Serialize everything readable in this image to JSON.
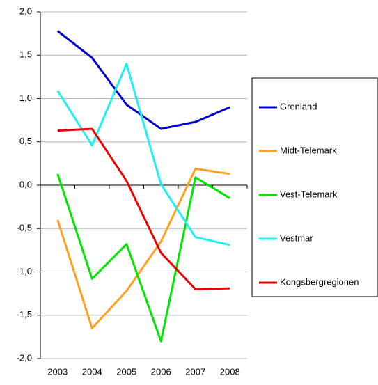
{
  "chart_data": {
    "type": "line",
    "categories": [
      "2003",
      "2004",
      "2005",
      "2006",
      "2007",
      "2008"
    ],
    "series": [
      {
        "name": "Grenland",
        "color": "#0000d0",
        "values": [
          1.78,
          1.47,
          0.93,
          0.65,
          0.73,
          0.9
        ]
      },
      {
        "name": "Midt-Telemark",
        "color": "#ffa020",
        "values": [
          -0.4,
          -1.65,
          -1.22,
          -0.65,
          0.19,
          0.13
        ]
      },
      {
        "name": "Vest-Telemark",
        "color": "#00e600",
        "values": [
          0.13,
          -1.08,
          -0.68,
          -1.8,
          0.09,
          -0.15
        ]
      },
      {
        "name": "Vestmar",
        "color": "#20f0f0",
        "values": [
          1.09,
          0.46,
          1.4,
          0.01,
          -0.6,
          -0.69
        ]
      },
      {
        "name": "Kongsbergregionen",
        "color": "#ee0000",
        "values": [
          0.63,
          0.65,
          0.05,
          -0.78,
          -1.2,
          -1.19
        ]
      }
    ],
    "ylim": [
      -2.0,
      2.0
    ],
    "yticks": [
      {
        "value": -2.0,
        "label": "-2,0"
      },
      {
        "value": -1.5,
        "label": "-1,5"
      },
      {
        "value": -1.0,
        "label": "-1,0"
      },
      {
        "value": -0.5,
        "label": "-0,5"
      },
      {
        "value": 0.0,
        "label": "0,0"
      },
      {
        "value": 0.5,
        "label": "0,5"
      },
      {
        "value": 1.0,
        "label": "1,0"
      },
      {
        "value": 1.5,
        "label": "1,5"
      },
      {
        "value": 2.0,
        "label": "2,0"
      }
    ],
    "grid": true,
    "legend": "right"
  }
}
